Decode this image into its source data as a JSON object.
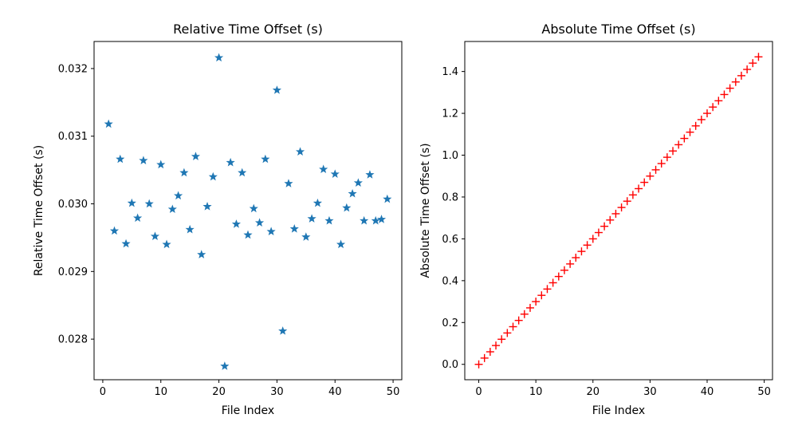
{
  "chart_data": [
    {
      "type": "scatter",
      "title": "Relative Time Offset (s)",
      "xlabel": "File Index",
      "ylabel": "Relative Time Offset (s)",
      "xlim": [
        -1.5,
        51.5
      ],
      "ylim": [
        0.0274,
        0.0324
      ],
      "xticks": [
        0,
        10,
        20,
        30,
        40,
        50
      ],
      "yticks": [
        0.028,
        0.029,
        0.03,
        0.031,
        0.032
      ],
      "ytick_labels": [
        "0.028",
        "0.029",
        "0.030",
        "0.031",
        "0.032"
      ],
      "marker": "star",
      "color": "#1f77b4",
      "grid": false,
      "x": [
        1,
        2,
        3,
        4,
        5,
        6,
        7,
        8,
        9,
        10,
        11,
        12,
        13,
        14,
        15,
        16,
        17,
        18,
        19,
        20,
        21,
        22,
        23,
        24,
        25,
        26,
        27,
        28,
        29,
        30,
        31,
        32,
        33,
        34,
        35,
        36,
        37,
        38,
        39,
        40,
        41,
        42,
        43,
        44,
        45,
        46,
        47,
        48,
        49
      ],
      "y": [
        0.03118,
        0.0296,
        0.03066,
        0.02941,
        0.03001,
        0.02979,
        0.03064,
        0.03,
        0.02952,
        0.03058,
        0.0294,
        0.02992,
        0.03012,
        0.03046,
        0.02962,
        0.0307,
        0.02925,
        0.02996,
        0.0304,
        0.03216,
        0.0276,
        0.03061,
        0.0297,
        0.03046,
        0.02954,
        0.02993,
        0.02972,
        0.03066,
        0.02959,
        0.03168,
        0.02812,
        0.0303,
        0.02963,
        0.03077,
        0.02951,
        0.02978,
        0.03001,
        0.03051,
        0.02975,
        0.03044,
        0.0294,
        0.02994,
        0.03015,
        0.03031,
        0.02975,
        0.03043,
        0.02975,
        0.02977,
        0.03007
      ]
    },
    {
      "type": "scatter",
      "title": "Absolute Time Offset (s)",
      "xlabel": "File Index",
      "ylabel": "Absolute Time Offset (s)",
      "xlim": [
        -2.45,
        51.45
      ],
      "ylim": [
        -0.0735,
        1.5435
      ],
      "xticks": [
        0,
        10,
        20,
        30,
        40,
        50
      ],
      "yticks": [
        0.0,
        0.2,
        0.4,
        0.6,
        0.8,
        1.0,
        1.2,
        1.4
      ],
      "ytick_labels": [
        "0.0",
        "0.2",
        "0.4",
        "0.6",
        "0.8",
        "1.0",
        "1.2",
        "1.4"
      ],
      "marker": "plus",
      "color": "#ff0000",
      "grid": false,
      "x_start": 0,
      "x_end": 49,
      "y_step": 0.03
    }
  ]
}
